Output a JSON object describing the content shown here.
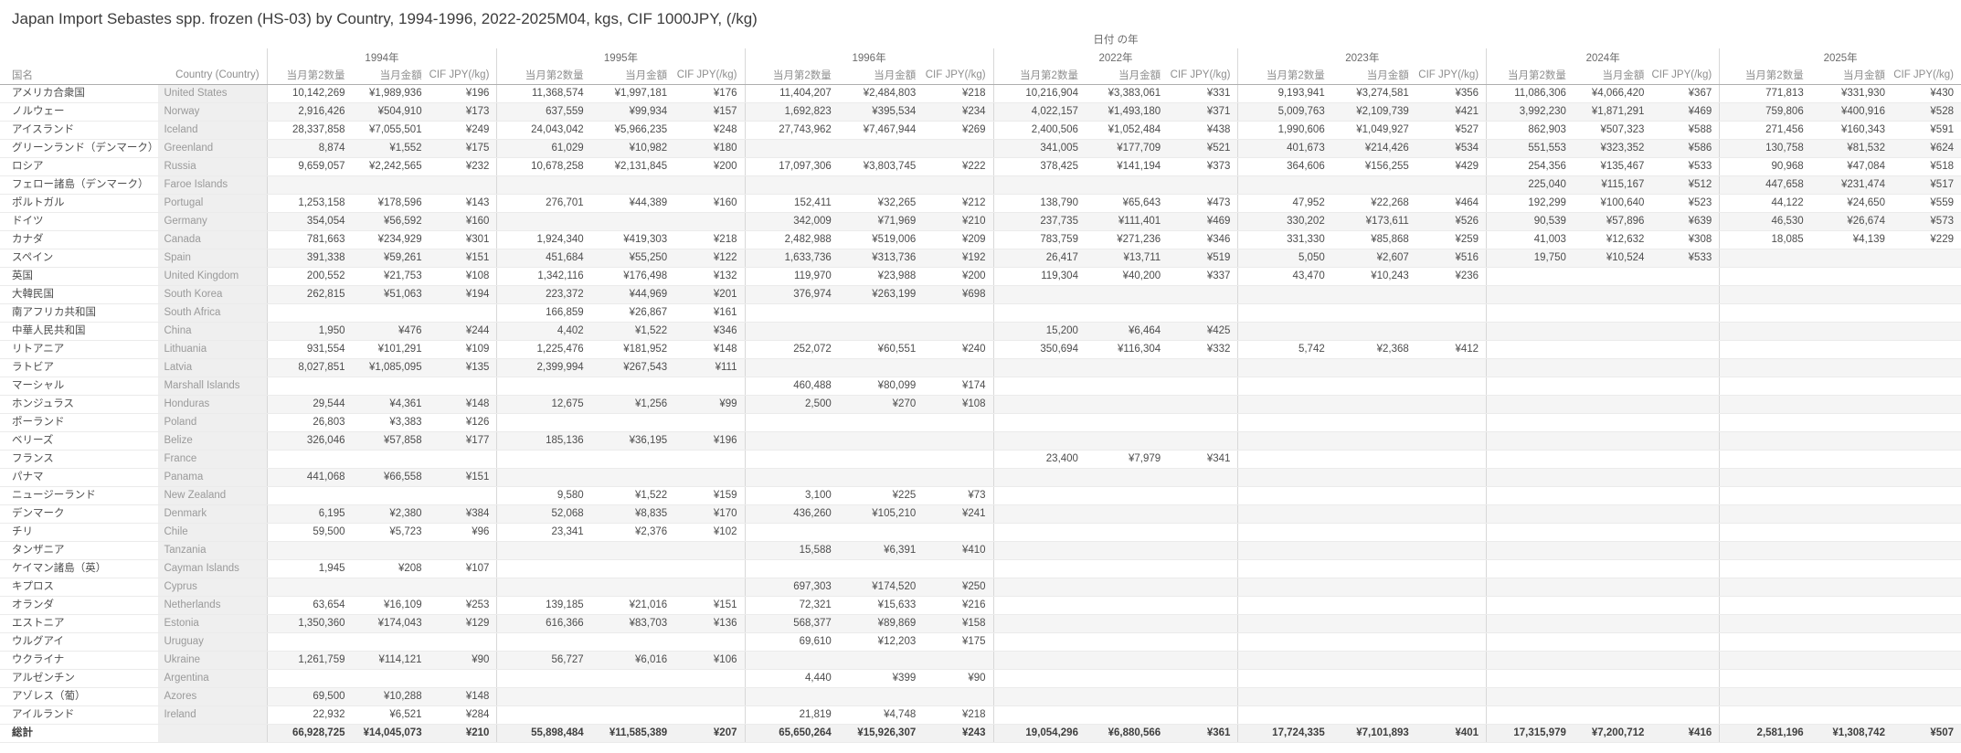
{
  "chart_data": {
    "type": "table",
    "title": "Japan Import Sebastes spp. frozen (HS-03) by Country, 1994-1996, 2022-2025M04, kgs, CIF 1000JPY, (/kg)",
    "dimension_label": "日付 の年",
    "row_header_labels": [
      "国名",
      "Country (Country)"
    ],
    "column_groups": [
      "1994年",
      "1995年",
      "1996年",
      "2022年",
      "2023年",
      "2024年",
      "2025年"
    ],
    "measures": [
      "当月第2数量",
      "当月金額",
      "CIF JPY(/kg)"
    ],
    "rows": [
      {
        "jp": "アメリカ合衆国",
        "en": "United States",
        "cells": [
          [
            "10,142,269",
            "¥1,989,936",
            "¥196"
          ],
          [
            "11,368,574",
            "¥1,997,181",
            "¥176"
          ],
          [
            "11,404,207",
            "¥2,484,803",
            "¥218"
          ],
          [
            "10,216,904",
            "¥3,383,061",
            "¥331"
          ],
          [
            "9,193,941",
            "¥3,274,581",
            "¥356"
          ],
          [
            "11,086,306",
            "¥4,066,420",
            "¥367"
          ],
          [
            "771,813",
            "¥331,930",
            "¥430"
          ]
        ]
      },
      {
        "jp": "ノルウェー",
        "en": "Norway",
        "cells": [
          [
            "2,916,426",
            "¥504,910",
            "¥173"
          ],
          [
            "637,559",
            "¥99,934",
            "¥157"
          ],
          [
            "1,692,823",
            "¥395,534",
            "¥234"
          ],
          [
            "4,022,157",
            "¥1,493,180",
            "¥371"
          ],
          [
            "5,009,763",
            "¥2,109,739",
            "¥421"
          ],
          [
            "3,992,230",
            "¥1,871,291",
            "¥469"
          ],
          [
            "759,806",
            "¥400,916",
            "¥528"
          ]
        ]
      },
      {
        "jp": "アイスランド",
        "en": "Iceland",
        "cells": [
          [
            "28,337,858",
            "¥7,055,501",
            "¥249"
          ],
          [
            "24,043,042",
            "¥5,966,235",
            "¥248"
          ],
          [
            "27,743,962",
            "¥7,467,944",
            "¥269"
          ],
          [
            "2,400,506",
            "¥1,052,484",
            "¥438"
          ],
          [
            "1,990,606",
            "¥1,049,927",
            "¥527"
          ],
          [
            "862,903",
            "¥507,323",
            "¥588"
          ],
          [
            "271,456",
            "¥160,343",
            "¥591"
          ]
        ]
      },
      {
        "jp": "グリーンランド（デンマーク）",
        "en": "Greenland",
        "cells": [
          [
            "8,874",
            "¥1,552",
            "¥175"
          ],
          [
            "61,029",
            "¥10,982",
            "¥180"
          ],
          [],
          [
            "341,005",
            "¥177,709",
            "¥521"
          ],
          [
            "401,673",
            "¥214,426",
            "¥534"
          ],
          [
            "551,553",
            "¥323,352",
            "¥586"
          ],
          [
            "130,758",
            "¥81,532",
            "¥624"
          ]
        ]
      },
      {
        "jp": "ロシア",
        "en": "Russia",
        "cells": [
          [
            "9,659,057",
            "¥2,242,565",
            "¥232"
          ],
          [
            "10,678,258",
            "¥2,131,845",
            "¥200"
          ],
          [
            "17,097,306",
            "¥3,803,745",
            "¥222"
          ],
          [
            "378,425",
            "¥141,194",
            "¥373"
          ],
          [
            "364,606",
            "¥156,255",
            "¥429"
          ],
          [
            "254,356",
            "¥135,467",
            "¥533"
          ],
          [
            "90,968",
            "¥47,084",
            "¥518"
          ]
        ]
      },
      {
        "jp": "フェロー諸島（デンマーク）",
        "en": "Faroe Islands",
        "cells": [
          [],
          [],
          [],
          [],
          [],
          [
            "225,040",
            "¥115,167",
            "¥512"
          ],
          [
            "447,658",
            "¥231,474",
            "¥517"
          ]
        ]
      },
      {
        "jp": "ポルトガル",
        "en": "Portugal",
        "cells": [
          [
            "1,253,158",
            "¥178,596",
            "¥143"
          ],
          [
            "276,701",
            "¥44,389",
            "¥160"
          ],
          [
            "152,411",
            "¥32,265",
            "¥212"
          ],
          [
            "138,790",
            "¥65,643",
            "¥473"
          ],
          [
            "47,952",
            "¥22,268",
            "¥464"
          ],
          [
            "192,299",
            "¥100,640",
            "¥523"
          ],
          [
            "44,122",
            "¥24,650",
            "¥559"
          ]
        ]
      },
      {
        "jp": "ドイツ",
        "en": "Germany",
        "cells": [
          [
            "354,054",
            "¥56,592",
            "¥160"
          ],
          [],
          [
            "342,009",
            "¥71,969",
            "¥210"
          ],
          [
            "237,735",
            "¥111,401",
            "¥469"
          ],
          [
            "330,202",
            "¥173,611",
            "¥526"
          ],
          [
            "90,539",
            "¥57,896",
            "¥639"
          ],
          [
            "46,530",
            "¥26,674",
            "¥573"
          ]
        ]
      },
      {
        "jp": "カナダ",
        "en": "Canada",
        "cells": [
          [
            "781,663",
            "¥234,929",
            "¥301"
          ],
          [
            "1,924,340",
            "¥419,303",
            "¥218"
          ],
          [
            "2,482,988",
            "¥519,006",
            "¥209"
          ],
          [
            "783,759",
            "¥271,236",
            "¥346"
          ],
          [
            "331,330",
            "¥85,868",
            "¥259"
          ],
          [
            "41,003",
            "¥12,632",
            "¥308"
          ],
          [
            "18,085",
            "¥4,139",
            "¥229"
          ]
        ]
      },
      {
        "jp": "スペイン",
        "en": "Spain",
        "cells": [
          [
            "391,338",
            "¥59,261",
            "¥151"
          ],
          [
            "451,684",
            "¥55,250",
            "¥122"
          ],
          [
            "1,633,736",
            "¥313,736",
            "¥192"
          ],
          [
            "26,417",
            "¥13,711",
            "¥519"
          ],
          [
            "5,050",
            "¥2,607",
            "¥516"
          ],
          [
            "19,750",
            "¥10,524",
            "¥533"
          ],
          []
        ]
      },
      {
        "jp": "英国",
        "en": "United Kingdom",
        "cells": [
          [
            "200,552",
            "¥21,753",
            "¥108"
          ],
          [
            "1,342,116",
            "¥176,498",
            "¥132"
          ],
          [
            "119,970",
            "¥23,988",
            "¥200"
          ],
          [
            "119,304",
            "¥40,200",
            "¥337"
          ],
          [
            "43,470",
            "¥10,243",
            "¥236"
          ],
          [],
          []
        ]
      },
      {
        "jp": "大韓民国",
        "en": "South Korea",
        "cells": [
          [
            "262,815",
            "¥51,063",
            "¥194"
          ],
          [
            "223,372",
            "¥44,969",
            "¥201"
          ],
          [
            "376,974",
            "¥263,199",
            "¥698"
          ],
          [],
          [],
          [],
          []
        ]
      },
      {
        "jp": "南アフリカ共和国",
        "en": "South Africa",
        "cells": [
          [],
          [
            "166,859",
            "¥26,867",
            "¥161"
          ],
          [],
          [],
          [],
          [],
          []
        ]
      },
      {
        "jp": "中華人民共和国",
        "en": "China",
        "cells": [
          [
            "1,950",
            "¥476",
            "¥244"
          ],
          [
            "4,402",
            "¥1,522",
            "¥346"
          ],
          [],
          [
            "15,200",
            "¥6,464",
            "¥425"
          ],
          [],
          [],
          []
        ]
      },
      {
        "jp": "リトアニア",
        "en": "Lithuania",
        "cells": [
          [
            "931,554",
            "¥101,291",
            "¥109"
          ],
          [
            "1,225,476",
            "¥181,952",
            "¥148"
          ],
          [
            "252,072",
            "¥60,551",
            "¥240"
          ],
          [
            "350,694",
            "¥116,304",
            "¥332"
          ],
          [
            "5,742",
            "¥2,368",
            "¥412"
          ],
          [],
          []
        ]
      },
      {
        "jp": "ラトビア",
        "en": "Latvia",
        "cells": [
          [
            "8,027,851",
            "¥1,085,095",
            "¥135"
          ],
          [
            "2,399,994",
            "¥267,543",
            "¥111"
          ],
          [],
          [],
          [],
          [],
          []
        ]
      },
      {
        "jp": "マーシャル",
        "en": "Marshall Islands",
        "cells": [
          [],
          [],
          [
            "460,488",
            "¥80,099",
            "¥174"
          ],
          [],
          [],
          [],
          []
        ]
      },
      {
        "jp": "ホンジュラス",
        "en": "Honduras",
        "cells": [
          [
            "29,544",
            "¥4,361",
            "¥148"
          ],
          [
            "12,675",
            "¥1,256",
            "¥99"
          ],
          [
            "2,500",
            "¥270",
            "¥108"
          ],
          [],
          [],
          [],
          []
        ]
      },
      {
        "jp": "ポーランド",
        "en": "Poland",
        "cells": [
          [
            "26,803",
            "¥3,383",
            "¥126"
          ],
          [],
          [],
          [],
          [],
          [],
          []
        ]
      },
      {
        "jp": "ベリーズ",
        "en": "Belize",
        "cells": [
          [
            "326,046",
            "¥57,858",
            "¥177"
          ],
          [
            "185,136",
            "¥36,195",
            "¥196"
          ],
          [],
          [],
          [],
          [],
          []
        ]
      },
      {
        "jp": "フランス",
        "en": "France",
        "cells": [
          [],
          [],
          [],
          [
            "23,400",
            "¥7,979",
            "¥341"
          ],
          [],
          [],
          []
        ]
      },
      {
        "jp": "パナマ",
        "en": "Panama",
        "cells": [
          [
            "441,068",
            "¥66,558",
            "¥151"
          ],
          [],
          [],
          [],
          [],
          [],
          []
        ]
      },
      {
        "jp": "ニュージーランド",
        "en": "New Zealand",
        "cells": [
          [],
          [
            "9,580",
            "¥1,522",
            "¥159"
          ],
          [
            "3,100",
            "¥225",
            "¥73"
          ],
          [],
          [],
          [],
          []
        ]
      },
      {
        "jp": "デンマーク",
        "en": "Denmark",
        "cells": [
          [
            "6,195",
            "¥2,380",
            "¥384"
          ],
          [
            "52,068",
            "¥8,835",
            "¥170"
          ],
          [
            "436,260",
            "¥105,210",
            "¥241"
          ],
          [],
          [],
          [],
          []
        ]
      },
      {
        "jp": "チリ",
        "en": "Chile",
        "cells": [
          [
            "59,500",
            "¥5,723",
            "¥96"
          ],
          [
            "23,341",
            "¥2,376",
            "¥102"
          ],
          [],
          [],
          [],
          [],
          []
        ]
      },
      {
        "jp": "タンザニア",
        "en": "Tanzania",
        "cells": [
          [],
          [],
          [
            "15,588",
            "¥6,391",
            "¥410"
          ],
          [],
          [],
          [],
          []
        ]
      },
      {
        "jp": "ケイマン諸島（英）",
        "en": "Cayman Islands",
        "cells": [
          [
            "1,945",
            "¥208",
            "¥107"
          ],
          [],
          [],
          [],
          [],
          [],
          []
        ]
      },
      {
        "jp": "キプロス",
        "en": "Cyprus",
        "cells": [
          [],
          [],
          [
            "697,303",
            "¥174,520",
            "¥250"
          ],
          [],
          [],
          [],
          []
        ]
      },
      {
        "jp": "オランダ",
        "en": "Netherlands",
        "cells": [
          [
            "63,654",
            "¥16,109",
            "¥253"
          ],
          [
            "139,185",
            "¥21,016",
            "¥151"
          ],
          [
            "72,321",
            "¥15,633",
            "¥216"
          ],
          [],
          [],
          [],
          []
        ]
      },
      {
        "jp": "エストニア",
        "en": "Estonia",
        "cells": [
          [
            "1,350,360",
            "¥174,043",
            "¥129"
          ],
          [
            "616,366",
            "¥83,703",
            "¥136"
          ],
          [
            "568,377",
            "¥89,869",
            "¥158"
          ],
          [],
          [],
          [],
          []
        ]
      },
      {
        "jp": "ウルグアイ",
        "en": "Uruguay",
        "cells": [
          [],
          [],
          [
            "69,610",
            "¥12,203",
            "¥175"
          ],
          [],
          [],
          [],
          []
        ]
      },
      {
        "jp": "ウクライナ",
        "en": "Ukraine",
        "cells": [
          [
            "1,261,759",
            "¥114,121",
            "¥90"
          ],
          [
            "56,727",
            "¥6,016",
            "¥106"
          ],
          [],
          [],
          [],
          [],
          []
        ]
      },
      {
        "jp": "アルゼンチン",
        "en": "Argentina",
        "cells": [
          [],
          [],
          [
            "4,440",
            "¥399",
            "¥90"
          ],
          [],
          [],
          [],
          []
        ]
      },
      {
        "jp": "アゾレス（葡）",
        "en": "Azores",
        "cells": [
          [
            "69,500",
            "¥10,288",
            "¥148"
          ],
          [],
          [],
          [],
          [],
          [],
          []
        ]
      },
      {
        "jp": "アイルランド",
        "en": "Ireland",
        "cells": [
          [
            "22,932",
            "¥6,521",
            "¥284"
          ],
          [],
          [
            "21,819",
            "¥4,748",
            "¥218"
          ],
          [],
          [],
          [],
          []
        ]
      }
    ],
    "total_row": {
      "jp": "総計",
      "en": "",
      "cells": [
        [
          "66,928,725",
          "¥14,045,073",
          "¥210"
        ],
        [
          "55,898,484",
          "¥11,585,389",
          "¥207"
        ],
        [
          "65,650,264",
          "¥15,926,307",
          "¥243"
        ],
        [
          "19,054,296",
          "¥6,880,566",
          "¥361"
        ],
        [
          "17,724,335",
          "¥7,101,893",
          "¥401"
        ],
        [
          "17,315,979",
          "¥7,200,712",
          "¥416"
        ],
        [
          "2,581,196",
          "¥1,308,742",
          "¥507"
        ]
      ]
    },
    "layout_hints": {
      "grid": "on",
      "row_banding": "alternate",
      "empty_cell": ""
    }
  },
  "colors": {
    "background": "#ffffff",
    "band": "#f5f5f5",
    "row_header_band": "#efefef",
    "grid_line": "#ebebeb",
    "group_separator": "#d8d8d8",
    "header_rule": "#aeaeae",
    "total_rule": "#b9b9b9",
    "text_primary": "#4d4d4d",
    "text_secondary": "#8e8e8e",
    "title_text": "#3c3c3c"
  }
}
